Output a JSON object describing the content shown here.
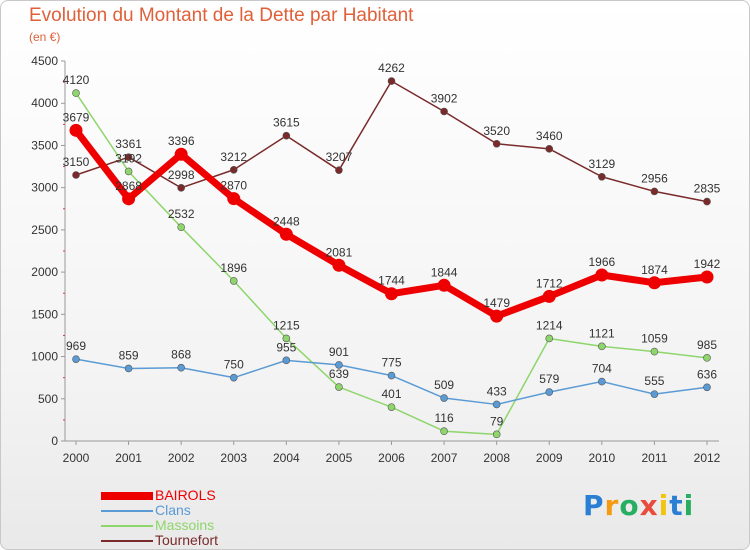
{
  "chart_data": {
    "type": "line",
    "title": "Evolution du Montant de la Dette par Habitant",
    "subtitle": "(en €)",
    "xlabel": "",
    "ylabel": "",
    "x": [
      "2000",
      "2001",
      "2002",
      "2003",
      "2004",
      "2005",
      "2006",
      "2007",
      "2008",
      "2009",
      "2010",
      "2011",
      "2012"
    ],
    "ylim": [
      0,
      4500
    ],
    "yticks": [
      "0",
      "500",
      "1000",
      "1500",
      "2000",
      "2500",
      "3000",
      "3500",
      "4000",
      "4500"
    ],
    "grid": false,
    "legend_position": "bottom-left",
    "series": [
      {
        "name": "BAIROLS",
        "color": "#ee0000",
        "values": [
          3679,
          2868,
          3396,
          2870,
          2448,
          2081,
          1744,
          1844,
          1479,
          1712,
          1966,
          1874,
          1942
        ]
      },
      {
        "name": "Clans",
        "color": "#5b9bd5",
        "values": [
          969,
          859,
          868,
          750,
          955,
          901,
          775,
          509,
          433,
          579,
          704,
          555,
          636
        ]
      },
      {
        "name": "Massoins",
        "color": "#8ed66b",
        "values": [
          4120,
          3192,
          2532,
          1896,
          1215,
          639,
          401,
          116,
          79,
          1214,
          1121,
          1059,
          985
        ]
      },
      {
        "name": "Tournefort",
        "color": "#7a2a2a",
        "values": [
          3150,
          3361,
          2998,
          3212,
          3615,
          3207,
          4262,
          3902,
          3520,
          3460,
          3129,
          2956,
          2835
        ]
      }
    ]
  },
  "logo": {
    "letters": [
      "P",
      "r",
      "o",
      "x",
      "i",
      "t",
      "i"
    ],
    "colors": [
      "#2a7fd4",
      "#f39c12",
      "#27ae60",
      "#e74c3c",
      "#f1c40f",
      "#2a7fd4",
      "#27ae60"
    ]
  }
}
